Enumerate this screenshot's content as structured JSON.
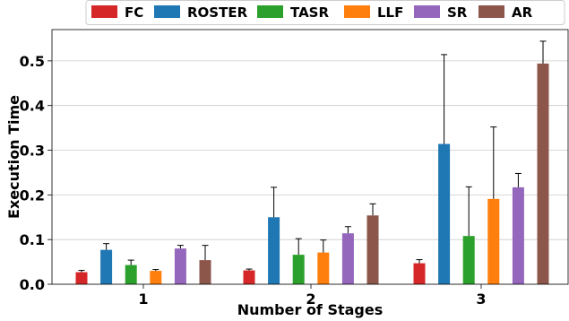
{
  "chart_data": {
    "type": "bar",
    "xlabel": "Number of Stages",
    "ylabel": "Execution Time",
    "categories": [
      "1",
      "2",
      "3"
    ],
    "ylim": [
      0,
      0.57
    ],
    "yticks": [
      "0.0",
      "0.1",
      "0.2",
      "0.3",
      "0.4",
      "0.5"
    ],
    "grid": "horizontal",
    "legend_position": "top",
    "series": [
      {
        "name": "FC",
        "color": "#d62728",
        "values": [
          0.027,
          0.031,
          0.047
        ],
        "errors": [
          0.004,
          0.003,
          0.008
        ]
      },
      {
        "name": "ROSTER",
        "color": "#1f77b4",
        "values": [
          0.077,
          0.15,
          0.314
        ],
        "errors": [
          0.014,
          0.067,
          0.2
        ]
      },
      {
        "name": "TASR",
        "color": "#2ca02c",
        "values": [
          0.043,
          0.066,
          0.108
        ],
        "errors": [
          0.011,
          0.036,
          0.11
        ]
      },
      {
        "name": "LLF",
        "color": "#ff7f0e",
        "values": [
          0.03,
          0.071,
          0.191
        ],
        "errors": [
          0.003,
          0.028,
          0.161
        ]
      },
      {
        "name": "SR",
        "color": "#9467bd",
        "values": [
          0.08,
          0.114,
          0.217
        ],
        "errors": [
          0.007,
          0.015,
          0.031
        ]
      },
      {
        "name": "AR",
        "color": "#8c564b",
        "values": [
          0.054,
          0.154,
          0.494
        ],
        "errors": [
          0.033,
          0.026,
          0.05
        ]
      }
    ]
  }
}
